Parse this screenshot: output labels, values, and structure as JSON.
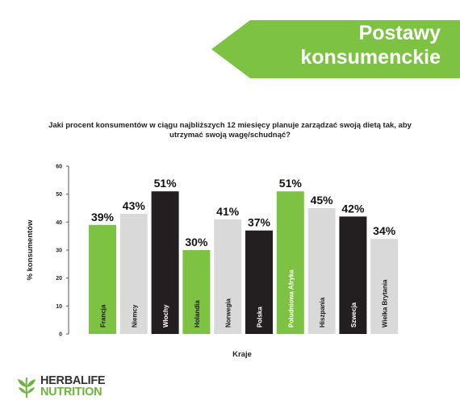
{
  "banner": {
    "title": "Postawy konsumenckie",
    "color": "#7dc242"
  },
  "question": "Jaki procent konsumentów w ciągu najbliższych 12 miesięcy planuje zarządzać swoją dietą tak, aby utrzymać swoją wagę/schudnąć?",
  "chart_data": {
    "type": "bar",
    "categories": [
      "Francja",
      "Niemcy",
      "Włochy",
      "Holandia",
      "Norwegia",
      "Polska",
      "Południowa Afryka",
      "Hiszpania",
      "Szwecja",
      "Wielka Brytania"
    ],
    "values": [
      39,
      43,
      51,
      30,
      41,
      37,
      51,
      45,
      42,
      34
    ],
    "value_labels": [
      "39%",
      "43%",
      "51%",
      "30%",
      "41%",
      "37%",
      "51%",
      "45%",
      "42%",
      "34%"
    ],
    "bar_colors": [
      "#7dc242",
      "#d9d9d9",
      "#231f20",
      "#7dc242",
      "#d9d9d9",
      "#231f20",
      "#7dc242",
      "#d9d9d9",
      "#231f20",
      "#d9d9d9"
    ],
    "label_colors": [
      "#1a1a1a",
      "#1a1a1a",
      "#ffffff",
      "#1a1a1a",
      "#1a1a1a",
      "#ffffff",
      "#ffffff",
      "#1a1a1a",
      "#ffffff",
      "#1a1a1a"
    ],
    "xlabel": "Kraje",
    "ylabel": "% konsumentów",
    "ylim": [
      0,
      60
    ],
    "yticks": [
      0,
      10,
      20,
      30,
      40,
      50,
      60
    ],
    "grid": false
  },
  "logo": {
    "line1": "HERBALIFE",
    "line2": "NUTRITION",
    "color": "#6cb33f"
  }
}
